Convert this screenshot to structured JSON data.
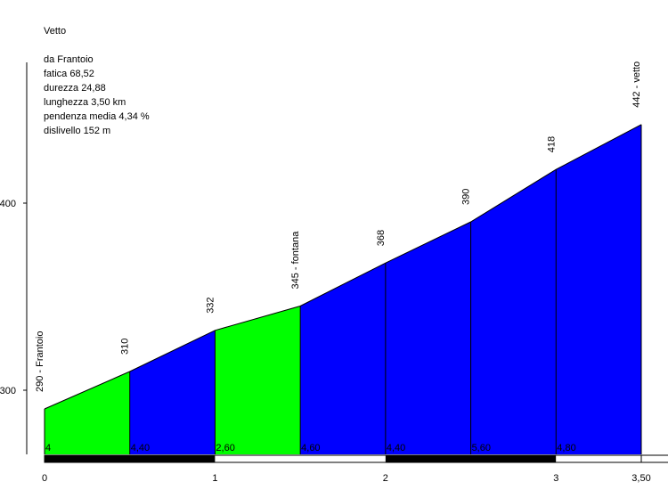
{
  "chart_data": {
    "type": "area",
    "title": "Vetto",
    "info": [
      "da Frantoio",
      "fatica 68,52",
      "durezza 24,88",
      "lunghezza 3,50 km",
      "pendenza media 4,34 %",
      "dislivello 152 m"
    ],
    "xlim": [
      0,
      3.5
    ],
    "ylim": [
      255,
      460
    ],
    "x_ticks": [
      {
        "value": 0,
        "label": "0"
      },
      {
        "value": 1,
        "label": "1"
      },
      {
        "value": 2,
        "label": "2"
      },
      {
        "value": 3,
        "label": "3"
      },
      {
        "value": 3.5,
        "label": "3,50"
      }
    ],
    "y_ticks": [
      {
        "value": 300,
        "label": "300"
      },
      {
        "value": 400,
        "label": "400"
      }
    ],
    "points": [
      {
        "x": 0,
        "y": 290,
        "label": "290 - Frantoio"
      },
      {
        "x": 0.5,
        "y": 310,
        "label": "310"
      },
      {
        "x": 1,
        "y": 332,
        "label": "332"
      },
      {
        "x": 1.5,
        "y": 345,
        "label": "345 - fontana"
      },
      {
        "x": 2,
        "y": 368,
        "label": "368"
      },
      {
        "x": 2.5,
        "y": 390,
        "label": "390"
      },
      {
        "x": 3,
        "y": 418,
        "label": "418"
      },
      {
        "x": 3.5,
        "y": 442,
        "label": "442 - vetto"
      }
    ],
    "segments": [
      {
        "x0": 0,
        "x1": 0.5,
        "gradient": "4",
        "color": "#00ff00"
      },
      {
        "x0": 0.5,
        "x1": 1,
        "gradient": "4,40",
        "color": "#0000ff"
      },
      {
        "x0": 1,
        "x1": 1.5,
        "gradient": "2,60",
        "color": "#00ff00"
      },
      {
        "x0": 1.5,
        "x1": 2,
        "gradient": "4,60",
        "color": "#0000ff"
      },
      {
        "x0": 2,
        "x1": 2.5,
        "gradient": "4,40",
        "color": "#0000ff"
      },
      {
        "x0": 2.5,
        "x1": 3,
        "gradient": "5,60",
        "color": "#0000ff"
      },
      {
        "x0": 3,
        "x1": 3.5,
        "gradient": "4,80",
        "color": "#0000ff"
      }
    ],
    "km_bar": [
      {
        "x0": 0,
        "x1": 1,
        "fill": "#000000"
      },
      {
        "x0": 1,
        "x1": 2,
        "fill": "#ffffff"
      },
      {
        "x0": 2,
        "x1": 3,
        "fill": "#000000"
      },
      {
        "x0": 3,
        "x1": 3.5,
        "fill": "#ffffff"
      }
    ]
  }
}
